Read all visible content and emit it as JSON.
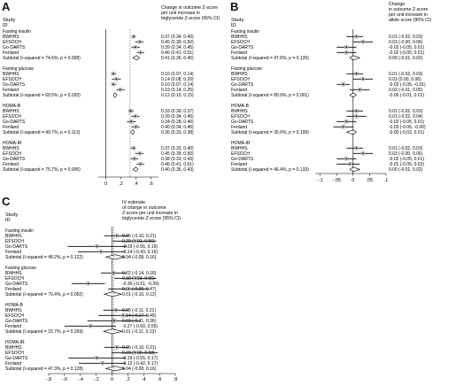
{
  "chart_data": [
    {
      "type": "forest",
      "panel": "A",
      "col_study": "Study",
      "col_id": "ID",
      "col_estimate": [
        "Change in outcome Z-score",
        "per unit increase in",
        "triglyceride Z-score (95% CI)"
      ],
      "xticks": [
        "0",
        ".2",
        ".4",
        ".6"
      ],
      "xlim": [
        -0.1,
        0.7
      ],
      "groups": [
        {
          "title": "Fasting insulin",
          "rows": [
            {
              "name": "BWHHS",
              "est": 0.37,
              "lo": 0.34,
              "hi": 0.4,
              "label": "0.37 (0.34, 0.40)"
            },
            {
              "name": "EFSOCH",
              "est": 0.45,
              "lo": 0.39,
              "hi": 0.5,
              "label": "0.45 (0.39, 0.50)"
            },
            {
              "name": "Go-DARTS",
              "est": 0.39,
              "lo": 0.34,
              "hi": 0.45,
              "label": "0.39 (0.34, 0.45)"
            },
            {
              "name": "Fenland",
              "est": 0.46,
              "lo": 0.41,
              "hi": 0.51,
              "label": "0.46 (0.41, 0.51)"
            }
          ],
          "subtotal": {
            "text": "Subtotal  (I-squared = 74.6%, p = 0.008)",
            "est": 0.41,
            "lo": 0.36,
            "hi": 0.45,
            "label": "0.41 (0.36, 0.45)"
          }
        },
        {
          "title": "Fasting glucose",
          "rows": [
            {
              "name": "BWHHS",
              "est": 0.1,
              "lo": 0.07,
              "hi": 0.14,
              "label": "0.10 (0.07, 0.14)"
            },
            {
              "name": "EFSOCH",
              "est": 0.14,
              "lo": 0.08,
              "hi": 0.2,
              "label": "0.14 (0.08, 0.20)"
            },
            {
              "name": "Go-DARTS",
              "est": 0.1,
              "lo": 0.07,
              "hi": 0.14,
              "label": "0.10 (0.07, 0.14)"
            },
            {
              "name": "Fenland",
              "est": 0.19,
              "lo": 0.14,
              "hi": 0.25,
              "label": "0.19 (0.14, 0.25)"
            }
          ],
          "subtotal": {
            "text": "Subtotal  (I-squared = 69.5%, p = 0.020)",
            "est": 0.12,
            "lo": 0.1,
            "hi": 0.15,
            "label": "0.12 (0.10, 0.15)"
          }
        },
        {
          "title": "HOMA-B",
          "rows": [
            {
              "name": "BWHHS",
              "est": 0.33,
              "lo": 0.3,
              "hi": 0.37,
              "label": "0.33 (0.30, 0.37)"
            },
            {
              "name": "EFSOCH",
              "est": 0.39,
              "lo": 0.34,
              "hi": 0.45,
              "label": "0.39 (0.34, 0.45)"
            },
            {
              "name": "Go-DARTS",
              "est": 0.34,
              "lo": 0.28,
              "hi": 0.4,
              "label": "0.34 (0.28, 0.40)"
            },
            {
              "name": "Fenland",
              "est": 0.4,
              "lo": 0.34,
              "hi": 0.45,
              "label": "0.40 (0.34, 0.45)"
            }
          ],
          "subtotal": {
            "text": "Subtotal  (I-squared = 49.7%, p = 0.113)",
            "est": 0.36,
            "lo": 0.33,
            "hi": 0.38,
            "label": "0.36 (0.33, 0.38)"
          }
        },
        {
          "title": "HOMA-IR",
          "rows": [
            {
              "name": "BWHHS",
              "est": 0.37,
              "lo": 0.33,
              "hi": 0.4,
              "label": "0.37 (0.33, 0.40)"
            },
            {
              "name": "EFSOCH",
              "est": 0.45,
              "lo": 0.39,
              "hi": 0.5,
              "label": "0.45 (0.39, 0.50)"
            },
            {
              "name": "Go-DARTS",
              "est": 0.38,
              "lo": 0.33,
              "hi": 0.43,
              "label": "0.38 (0.33, 0.43)"
            },
            {
              "name": "Fenland",
              "est": 0.46,
              "lo": 0.41,
              "hi": 0.51,
              "label": "0.46 (0.41, 0.51)"
            }
          ],
          "subtotal": {
            "text": "Subtotal  (I-squared = 75.7%, p = 0.006)",
            "est": 0.4,
            "lo": 0.36,
            "hi": 0.43,
            "label": "0.40 (0.36, 0.43)"
          }
        }
      ]
    },
    {
      "type": "forest",
      "panel": "B",
      "col_study": "Study",
      "col_id": "ID",
      "col_estimate": [
        "Change",
        "in outcome Z-score",
        "per unit increase in",
        "allele score (95% CI)"
      ],
      "xticks": [
        "-.1",
        "-.05",
        "0",
        ".05",
        ".1"
      ],
      "xlim": [
        -0.115,
        0.1
      ],
      "groups": [
        {
          "title": "Fasting insulin",
          "rows": [
            {
              "name": "BWHHS",
              "est": 0.01,
              "lo": -0.02,
              "hi": 0.03,
              "label": "0.01 (-0.02, 0.03)"
            },
            {
              "name": "EFSOCH",
              "est": 0.03,
              "lo": -0.0,
              "hi": 0.06,
              "label": "0.03 (-0.00, 0.06)"
            },
            {
              "name": "Go-DARTS",
              "est": -0.02,
              "lo": -0.05,
              "hi": 0.01,
              "label": "-0.02 (-0.05, 0.01)"
            },
            {
              "name": "Fenland",
              "est": -0.02,
              "lo": -0.05,
              "hi": 0.01,
              "label": "-0.02 (-0.05, 0.01)"
            }
          ],
          "subtotal": {
            "text": "Subtotal  (I-squared = 47.6%, p = 0.126)",
            "est": 0.0,
            "lo": -0.01,
            "hi": 0.02,
            "label": "0.00 (-0.01, 0.02)"
          }
        },
        {
          "title": "Fasting glucose",
          "rows": [
            {
              "name": "BWHHS",
              "est": 0.01,
              "lo": -0.02,
              "hi": 0.03,
              "label": "0.01 (-0.02, 0.03)"
            },
            {
              "name": "EFSOCH",
              "est": 0.03,
              "lo": 0.0,
              "hi": 0.06,
              "label": "0.03 (0.00, 0.06)"
            },
            {
              "name": "Go-DARTS",
              "est": -0.03,
              "lo": -0.05,
              "hi": -0.01,
              "label": "-0.03 (-0.05, -0.01)"
            },
            {
              "name": "Fenland",
              "est": 0.02,
              "lo": -0.01,
              "hi": 0.05,
              "label": "0.02 (-0.01, 0.05)"
            }
          ],
          "subtotal": {
            "text": "Subtotal  (I-squared = 80.9%, p = 0.001)",
            "est": -0.0,
            "lo": -0.01,
            "hi": 0.01,
            "label": "-0.00 (-0.01, 0.01)"
          }
        },
        {
          "title": "HOMA-B",
          "rows": [
            {
              "name": "BWHHS",
              "est": 0.01,
              "lo": -0.02,
              "hi": 0.03,
              "label": "0.01 (-0.02, 0.03)"
            },
            {
              "name": "EFSOCH",
              "est": 0.01,
              "lo": -0.02,
              "hi": 0.04,
              "label": "0.01 (-0.02, 0.04)"
            },
            {
              "name": "Go-DARTS",
              "est": -0.02,
              "lo": -0.05,
              "hi": 0.01,
              "label": "-0.02 (-0.05, 0.01)"
            },
            {
              "name": "Fenland",
              "est": -0.03,
              "lo": -0.06,
              "hi": -0.0,
              "label": "-0.03 (-0.06, -0.00)"
            }
          ],
          "subtotal": {
            "text": "Subtotal  (I-squared = 35.6%, p = 0.199)",
            "est": -0.0,
            "lo": -0.02,
            "hi": 0.01,
            "label": "-0.00 (-0.02, 0.01)"
          }
        },
        {
          "title": "HOMA-IR",
          "rows": [
            {
              "name": "BWHHS",
              "est": 0.01,
              "lo": -0.02,
              "hi": 0.03,
              "label": "0.01 (-0.02, 0.03)"
            },
            {
              "name": "EFSOCH",
              "est": 0.03,
              "lo": -0.0,
              "hi": 0.06,
              "label": "0.03 (-0.00, 0.06)"
            },
            {
              "name": "Go-DARTS",
              "est": -0.02,
              "lo": -0.05,
              "hi": 0.01,
              "label": "-0.02 (-0.05, 0.01)"
            },
            {
              "name": "Fenland",
              "est": -0.01,
              "lo": -0.05,
              "hi": 0.02,
              "label": "-0.01 (-0.05, 0.02)"
            }
          ],
          "subtotal": {
            "text": "Subtotal  (I-squared = 46.4%, p = 0.133)",
            "est": 0.0,
            "lo": -0.01,
            "hi": 0.02,
            "label": "0.00 (-0.01, 0.02)"
          }
        }
      ]
    },
    {
      "type": "forest",
      "panel": "C",
      "col_study": "Study",
      "col_id": "ID",
      "col_estimate": [
        "IV estimate",
        "of change in outcome",
        "Z-score per unit increase in",
        "triglyceride Z-score (95% CI)"
      ],
      "xticks": [
        "-.8",
        "-.6",
        "-.4",
        "-.2",
        "0",
        ".2",
        ".4",
        ".6",
        ".8"
      ],
      "xlim": [
        -0.8,
        0.8
      ],
      "groups": [
        {
          "title": "Fasting insulin",
          "rows": [
            {
              "name": "BWHHS",
              "est": 0.06,
              "lo": -0.1,
              "hi": 0.21,
              "label": "0.06 (-0.10, 0.21)"
            },
            {
              "name": "EFSOCH",
              "est": 0.29,
              "lo": 0.01,
              "hi": 0.56,
              "label": "0.29 (0.01, 0.56)"
            },
            {
              "name": "Go-DARTS",
              "est": -0.19,
              "lo": -0.56,
              "hi": 0.19,
              "label": "-0.19 (-0.56, 0.19)"
            },
            {
              "name": "Fenland",
              "est": -0.14,
              "lo": -0.43,
              "hi": 0.16,
              "label": "-0.14 (-0.43, 0.16)"
            }
          ],
          "subtotal": {
            "text": "Subtotal  (I-squared = 48.2%, p = 0.122)",
            "est": 0.04,
            "lo": -0.08,
            "hi": 0.16,
            "label": "0.04 (-0.08, 0.16)"
          }
        },
        {
          "title": "Fasting glucose",
          "rows": [
            {
              "name": "BWHHS",
              "est": 0.02,
              "lo": -0.14,
              "hi": 0.18,
              "label": "0.02 (-0.14, 0.18)"
            },
            {
              "name": "EFSOCH",
              "est": 0.3,
              "lo": 0.03,
              "hi": 0.56,
              "label": "0.30 (0.03, 0.56)"
            },
            {
              "name": "Go-DARTS",
              "est": -0.3,
              "lo": -0.51,
              "hi": -0.09,
              "label": "-0.30 (-0.51, -0.09)"
            },
            {
              "name": "Fenland",
              "est": 0.21,
              "lo": -0.05,
              "hi": 0.47,
              "label": "0.21 (-0.05, 0.47)"
            }
          ],
          "subtotal": {
            "text": "Subtotal  (I-squared = 79.4%, p = 0.002)",
            "est": 0.01,
            "lo": -0.1,
            "hi": 0.12,
            "label": "0.01 (-0.10, 0.12)"
          }
        },
        {
          "title": "HOMA-B",
          "rows": [
            {
              "name": "BWHHS",
              "est": 0.05,
              "lo": -0.11,
              "hi": 0.21,
              "label": "0.05 (-0.11, 0.21)"
            },
            {
              "name": "EFSOCH",
              "est": 0.14,
              "lo": -0.17,
              "hi": 0.45,
              "label": "0.14 (-0.17, 0.45)"
            },
            {
              "name": "Go-DARTS",
              "est": 0.03,
              "lo": -0.31,
              "hi": 0.36,
              "label": "0.03 (-0.31, 0.36)"
            },
            {
              "name": "Fenland",
              "est": -0.27,
              "lo": -0.6,
              "hi": 0.05,
              "label": "-0.27 (-0.60, 0.05)"
            }
          ],
          "subtotal": {
            "text": "Subtotal  (I-squared = 23.7%, p = 0.269)",
            "est": 0.01,
            "lo": -0.11,
            "hi": 0.13,
            "label": "0.01 (-0.11, 0.13)"
          }
        },
        {
          "title": "HOMA-IR",
          "rows": [
            {
              "name": "BWHHS",
              "est": 0.06,
              "lo": -0.1,
              "hi": 0.21,
              "label": "0.06 (-0.10, 0.21)"
            },
            {
              "name": "EFSOCH",
              "est": 0.29,
              "lo": 0.0,
              "hi": 0.58,
              "label": "0.29 (0.00, 0.58)"
            },
            {
              "name": "Go-DARTS",
              "est": -0.19,
              "lo": -0.55,
              "hi": 0.17,
              "label": "-0.19 (-0.55, 0.17)"
            },
            {
              "name": "Fenland",
              "est": -0.12,
              "lo": -0.42,
              "hi": 0.17,
              "label": "-0.12 (-0.42, 0.17)"
            }
          ],
          "subtotal": {
            "text": "Subtotal  (I-squared = 47.3%, p = 0.128)",
            "est": 0.04,
            "lo": -0.08,
            "hi": 0.16,
            "label": "0.04 (-0.08, 0.16)"
          }
        }
      ]
    }
  ]
}
